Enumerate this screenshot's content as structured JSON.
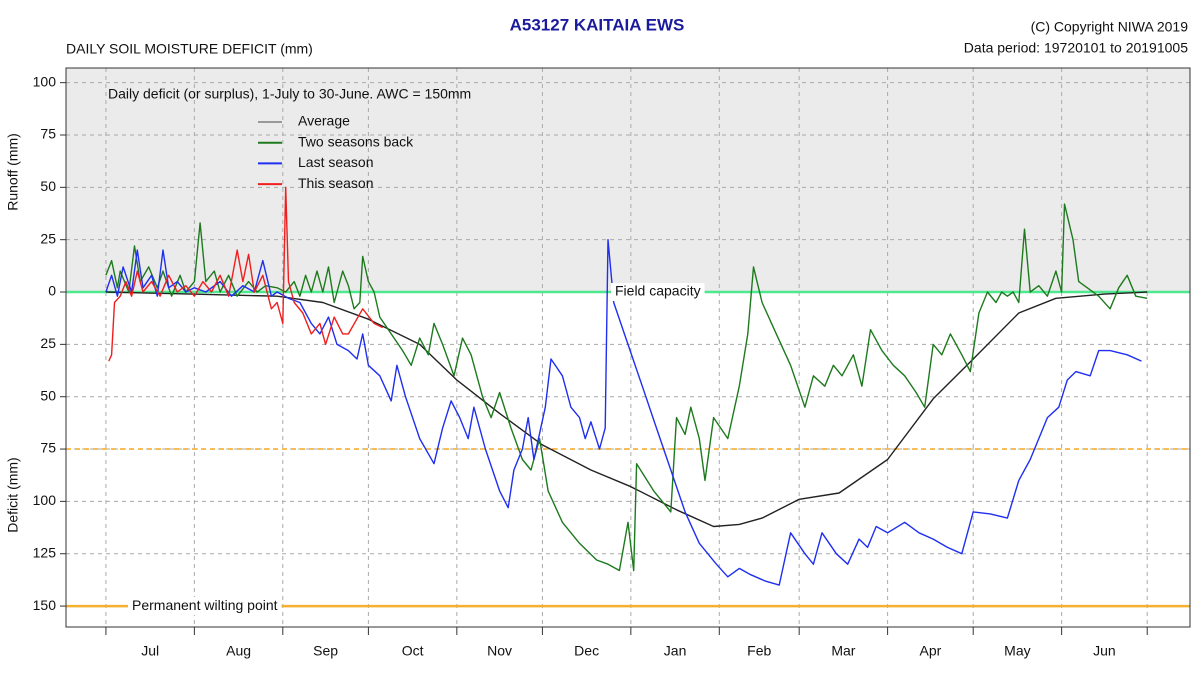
{
  "chart_data": {
    "type": "line",
    "title": "A53127  KAITAIA EWS",
    "subtitle": "DAILY SOIL MOISTURE DEFICIT (mm)",
    "copyright": "(C) Copyright NIWA  2019",
    "data_period": "Data period:  19720101  to  20191005",
    "annotation": "Daily deficit (or surplus), 1-July to 30-June.  AWC = 150mm",
    "y_label_top": "Runoff (mm)",
    "y_label_bottom": "Deficit (mm)",
    "xlim": [
      -14,
      380
    ],
    "ylim": [
      -160,
      107
    ],
    "xticks": [
      0,
      31,
      62,
      92,
      123,
      153,
      184,
      215,
      243,
      274,
      304,
      335,
      365
    ],
    "xtick_labels": [
      "Jul",
      "Aug",
      "Sep",
      "Oct",
      "Nov",
      "Dec",
      "Jan",
      "Feb",
      "Mar",
      "Apr",
      "May",
      "Jun"
    ],
    "yticks": [
      100,
      75,
      50,
      25,
      0,
      {
        "value": -25,
        "label": "25"
      },
      {
        "value": -50,
        "label": "50"
      },
      {
        "value": -75,
        "label": "75"
      },
      {
        "value": -100,
        "label": "100"
      },
      {
        "value": -125,
        "label": "125"
      },
      {
        "value": -150,
        "label": "150"
      }
    ],
    "grid": true,
    "reference_lines": [
      {
        "value": 0,
        "label": "Field capacity",
        "color": "#4ee88f"
      },
      {
        "value": -75,
        "color": "#f5a623",
        "dashed": true
      },
      {
        "value": -150,
        "label": "Permanent wilting point",
        "color": "#f5b030"
      }
    ],
    "series": [
      {
        "name": "Average",
        "color": "#222222",
        "x": [
          0,
          30,
          60,
          76,
          92,
          110,
          123,
          138,
          153,
          170,
          184,
          200,
          213,
          222,
          230,
          243,
          257,
          274,
          290,
          304,
          320,
          333,
          350,
          365
        ],
        "values": [
          0,
          -1,
          -2,
          -5,
          -13,
          -25,
          -42,
          -58,
          -73,
          -85,
          -93,
          -104,
          -112,
          -111,
          -108,
          -99,
          -96,
          -80,
          -51,
          -32,
          -10,
          -3,
          -1,
          0
        ]
      },
      {
        "name": "Two seasons back",
        "color": "#1e7a1e",
        "x": [
          0,
          2,
          4,
          5,
          8,
          10,
          12,
          15,
          18,
          20,
          23,
          26,
          28,
          31,
          33,
          35,
          38,
          40,
          43,
          46,
          50,
          53,
          56,
          60,
          63,
          66,
          68,
          70,
          72,
          74,
          76,
          78,
          80,
          83,
          85,
          87,
          89,
          90,
          92,
          94,
          96,
          100,
          104,
          107,
          110,
          113,
          115,
          118,
          122,
          125,
          128,
          132,
          135,
          138,
          142,
          146,
          149,
          152,
          155,
          160,
          166,
          172,
          176,
          180,
          183,
          185,
          186,
          192,
          198,
          200,
          203,
          205,
          208,
          210,
          213,
          218,
          222,
          225,
          227,
          230,
          235,
          240,
          245,
          248,
          252,
          255,
          258,
          262,
          265,
          268,
          272,
          276,
          280,
          284,
          287,
          290,
          293,
          296,
          300,
          303,
          306,
          309,
          312,
          314,
          316,
          318,
          320,
          322,
          324,
          327,
          330,
          333,
          335,
          336,
          339,
          341,
          344,
          348,
          352,
          355,
          358,
          361,
          365
        ],
        "values": [
          8,
          15,
          2,
          10,
          0,
          22,
          5,
          12,
          2,
          10,
          -2,
          8,
          0,
          5,
          33,
          5,
          10,
          0,
          8,
          -2,
          5,
          0,
          3,
          2,
          0,
          5,
          -2,
          8,
          0,
          10,
          0,
          12,
          -5,
          10,
          3,
          -8,
          -5,
          17,
          5,
          0,
          -12,
          -20,
          -28,
          -35,
          -22,
          -30,
          -15,
          -25,
          -40,
          -22,
          -30,
          -50,
          -60,
          -48,
          -65,
          -80,
          -85,
          -70,
          -95,
          -110,
          -120,
          -128,
          -130,
          -133,
          -110,
          -133,
          -82,
          -95,
          -105,
          -60,
          -68,
          -55,
          -70,
          -90,
          -60,
          -70,
          -45,
          -20,
          12,
          -5,
          -20,
          -35,
          -55,
          -40,
          -45,
          -35,
          -40,
          -30,
          -45,
          -18,
          -28,
          -35,
          -40,
          -48,
          -55,
          -25,
          -30,
          -20,
          -30,
          -38,
          -10,
          0,
          -5,
          0,
          -2,
          0,
          -5,
          30,
          0,
          3,
          -2,
          10,
          0,
          42,
          25,
          5,
          2,
          -2,
          -8,
          2,
          8,
          -2,
          -3
        ]
      },
      {
        "name": "Last season",
        "color": "#1f2ff0",
        "x": [
          0,
          2,
          4,
          6,
          9,
          11,
          13,
          16,
          18,
          20,
          22,
          25,
          28,
          31,
          35,
          40,
          44,
          48,
          52,
          55,
          58,
          60,
          64,
          68,
          72,
          75,
          78,
          81,
          85,
          88,
          90,
          92,
          96,
          100,
          102,
          105,
          110,
          115,
          118,
          121,
          124,
          127,
          129,
          133,
          138,
          141,
          143,
          146,
          148,
          150,
          154,
          156,
          160,
          163,
          166,
          168,
          170,
          173,
          175,
          176,
          178,
          183,
          188,
          193,
          198,
          203,
          208,
          214,
          218,
          222,
          226,
          231,
          236,
          240,
          245,
          248,
          251,
          256,
          260,
          264,
          267,
          270,
          274,
          280,
          285,
          290,
          295,
          300,
          304,
          310,
          316,
          320,
          324,
          327,
          330,
          334,
          337,
          340,
          345,
          348,
          352,
          358,
          363
        ],
        "values": [
          0,
          8,
          -2,
          12,
          0,
          20,
          2,
          8,
          -2,
          20,
          2,
          5,
          0,
          2,
          0,
          5,
          -2,
          3,
          0,
          15,
          -2,
          0,
          -3,
          -5,
          -15,
          -20,
          -12,
          -25,
          -28,
          -32,
          -20,
          -35,
          -40,
          -52,
          -35,
          -50,
          -70,
          -82,
          -65,
          -52,
          -60,
          -70,
          -55,
          -75,
          -95,
          -103,
          -85,
          -75,
          -60,
          -80,
          -55,
          -32,
          -40,
          -55,
          -60,
          -70,
          -62,
          -75,
          -65,
          25,
          -5,
          -25,
          -45,
          -65,
          -85,
          -105,
          -120,
          -130,
          -136,
          -132,
          -135,
          -138,
          -140,
          -115,
          -125,
          -130,
          -115,
          -125,
          -130,
          -118,
          -122,
          -112,
          -115,
          -110,
          -115,
          -118,
          -122,
          -125,
          -105,
          -106,
          -108,
          -90,
          -80,
          -70,
          -60,
          -55,
          -42,
          -38,
          -40,
          -28,
          -28,
          -30,
          -33
        ]
      },
      {
        "name": "This season",
        "color": "#f01e1e",
        "x": [
          1,
          2,
          3,
          5,
          7,
          9,
          11,
          13,
          16,
          19,
          22,
          25,
          28,
          31,
          34,
          37,
          40,
          43,
          46,
          48,
          50,
          52,
          55,
          58,
          60,
          62,
          63,
          64,
          66,
          69,
          72,
          75,
          77,
          80,
          83,
          85,
          90,
          94,
          97
        ],
        "values": [
          -33,
          -30,
          -5,
          -2,
          5,
          -2,
          10,
          0,
          5,
          -2,
          8,
          0,
          3,
          -2,
          5,
          0,
          8,
          -2,
          20,
          5,
          18,
          0,
          8,
          -8,
          -5,
          -15,
          50,
          5,
          -5,
          -10,
          -20,
          -15,
          -25,
          -12,
          -20,
          -20,
          -8,
          -15,
          -17
        ]
      }
    ]
  }
}
